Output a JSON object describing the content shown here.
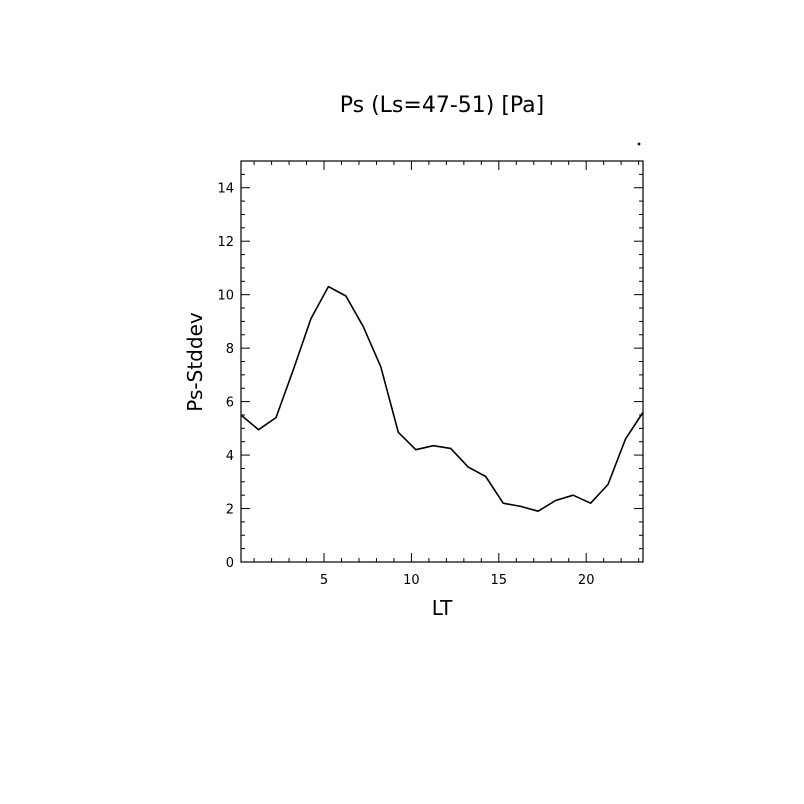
{
  "chart_data": {
    "type": "line",
    "title": "Ps (Ls=47-51) [Pa]",
    "xlabel": "LT",
    "ylabel": "Ps-Stddev",
    "xlim": [
      0.25,
      23.25
    ],
    "ylim": [
      0,
      15
    ],
    "x_ticks": [
      5,
      10,
      15,
      20
    ],
    "y_ticks": [
      0,
      2,
      4,
      6,
      8,
      10,
      12,
      14
    ],
    "grid": false,
    "series": [
      {
        "x": [
          0.25,
          1.25,
          2.25,
          3.25,
          4.25,
          5.25,
          6.25,
          7.25,
          8.25,
          9.25,
          10.25,
          11.25,
          12.25,
          13.25,
          14.25,
          15.25,
          16.25,
          17.25,
          18.25,
          19.25,
          20.25,
          21.25,
          22.25,
          23.25
        ],
        "values": [
          5.5,
          4.95,
          5.4,
          7.2,
          9.1,
          10.3,
          9.95,
          8.8,
          7.3,
          4.85,
          4.2,
          4.35,
          4.25,
          3.55,
          3.2,
          2.2,
          2.08,
          1.9,
          2.3,
          2.5,
          2.2,
          2.9,
          4.6,
          5.6
        ]
      }
    ]
  }
}
